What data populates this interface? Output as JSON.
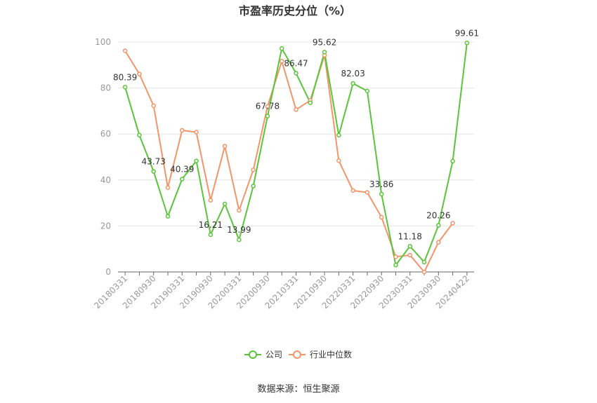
{
  "chart_data": {
    "type": "line",
    "title": "市盈率历史分位（%）",
    "xlabel": "",
    "ylabel": "",
    "ylim": [
      0,
      100
    ],
    "yticks": [
      0,
      20,
      40,
      60,
      80,
      100
    ],
    "x": [
      "20180331",
      "20180630",
      "20180930",
      "20181231",
      "20190331",
      "20190630",
      "20190930",
      "20191231",
      "20200331",
      "20200630",
      "20200930",
      "20201231",
      "20210331",
      "20210630",
      "20210930",
      "20211231",
      "20220331",
      "20220630",
      "20220930",
      "20221231",
      "20230331",
      "20230630",
      "20230930",
      "20231231",
      "20240422"
    ],
    "x_tick_labels": [
      "20180331",
      "20180930",
      "20190331",
      "20190930",
      "20200331",
      "20200930",
      "20210331",
      "20210930",
      "20220331",
      "20220930",
      "20230331",
      "20230930",
      "20240422"
    ],
    "series": [
      {
        "name": "公司",
        "color": "#5ac43a",
        "values": [
          80.39,
          59.5,
          43.73,
          24.2,
          40.39,
          48.3,
          16.21,
          29.6,
          13.99,
          37.4,
          67.78,
          97.2,
          86.47,
          73.6,
          95.62,
          59.5,
          82.03,
          78.7,
          33.86,
          3.0,
          11.18,
          4.3,
          20.26,
          48.2,
          99.61
        ],
        "labels": {
          "0": "80.39",
          "2": "43.73",
          "4": "40.39",
          "6": "16.21",
          "8": "13.99",
          "10": "67.78",
          "12": "86.47",
          "14": "95.62",
          "16": "82.03",
          "18": "33.86",
          "20": "11.18",
          "22": "20.26",
          "24": "99.61"
        }
      },
      {
        "name": "行业中位数",
        "color": "#f39469",
        "values": [
          96.2,
          86.1,
          72.3,
          36.7,
          61.6,
          60.8,
          31.2,
          54.7,
          26.8,
          44.4,
          72.0,
          91.7,
          70.6,
          74.6,
          94.3,
          48.4,
          35.4,
          34.6,
          23.8,
          6.6,
          7.3,
          0.0,
          12.9,
          21.2,
          null
        ]
      }
    ],
    "legend": "bottom-center",
    "grid": true
  },
  "footer": {
    "source_text": "数据来源：恒生聚源"
  }
}
